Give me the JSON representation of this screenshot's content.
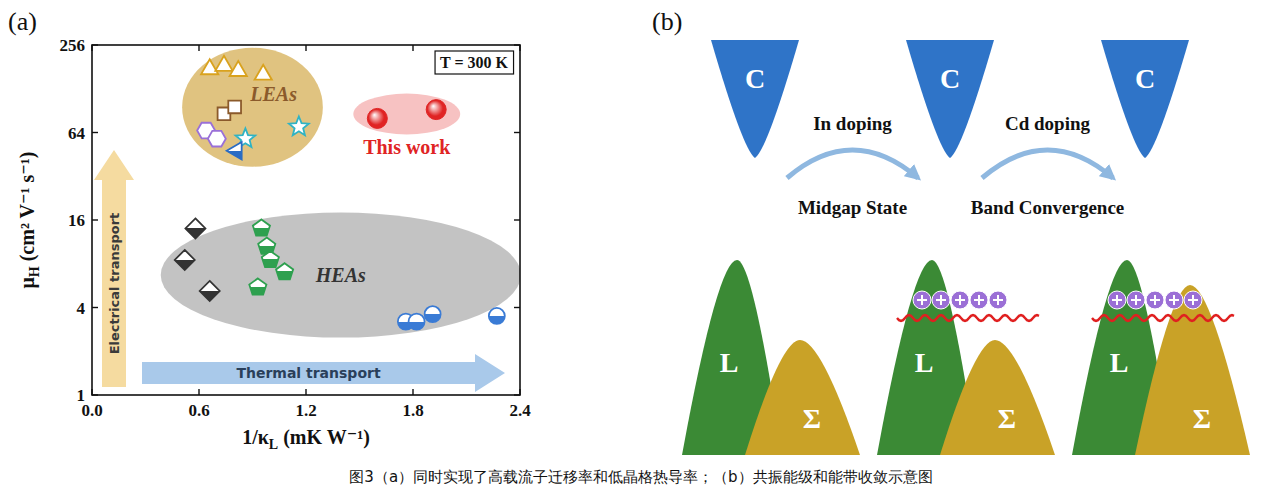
{
  "panel_labels": [
    "(a)",
    "(b)"
  ],
  "chart_data": {
    "type": "scatter",
    "x_label": "1/κL (mK W⁻¹)",
    "y_label": "μH (cm² V⁻¹ s⁻¹)",
    "log": "y",
    "xlim": [
      0,
      2.4
    ],
    "xticks": [
      {
        "value": 0,
        "label": "0.0"
      },
      0.6,
      1.2,
      1.8,
      2.4
    ],
    "ylim": [
      1,
      256
    ],
    "yticks": [
      1,
      4,
      16,
      64,
      256
    ],
    "note": "T = 300 K",
    "arrows": [
      {
        "label": "Electrical transport",
        "color": "#f5dba0"
      },
      {
        "label": "Thermal transport",
        "color": "#a9c9ea"
      }
    ],
    "groups": [
      {
        "label": "LEAs",
        "color": "#d8b460",
        "series": [
          {
            "color": "#8b5a2b",
            "marker": "square-open",
            "x": [
              0.74,
              0.8
            ],
            "values": [
              86,
              96
            ]
          },
          {
            "color": "#d9a21e",
            "marker": "triangle-open",
            "x": [
              0.66,
              0.74,
              0.82,
              0.96
            ],
            "values": [
              180,
              190,
              175,
              165
            ]
          },
          {
            "color": "#9a70d8",
            "marker": "hexagon-open",
            "x": [
              0.64,
              0.7
            ],
            "values": [
              66,
              58
            ]
          },
          {
            "color": "#2fb3c4",
            "marker": "star-open",
            "x": [
              0.86,
              1.16
            ],
            "values": [
              58,
              70
            ]
          },
          {
            "color": "#2a6cc4",
            "marker": "triangle-left-half",
            "x": [
              0.8
            ],
            "values": [
              48
            ]
          }
        ]
      },
      {
        "label": "This work",
        "color": "#f5b3b3",
        "series": [
          {
            "color": "#e02424",
            "marker": "circle-filled",
            "x": [
              1.6,
              1.93
            ],
            "values": [
              80,
              92
            ]
          }
        ]
      },
      {
        "label": "HEAs",
        "color": "#b4b4b4",
        "series": [
          {
            "color": "#333333",
            "marker": "diamond-half",
            "x": [
              0.58,
              0.52,
              0.66
            ],
            "values": [
              14,
              8.5,
              5.2
            ]
          },
          {
            "color": "#2ea04f",
            "marker": "pentagon-half",
            "x": [
              0.95,
              0.98,
              1.0,
              1.08,
              0.93
            ],
            "values": [
              14,
              10.5,
              8.5,
              7,
              5.5
            ]
          },
          {
            "color": "#3a7bd5",
            "marker": "circle-half",
            "x": [
              1.76,
              1.82,
              1.91,
              2.27
            ],
            "values": [
              3.2,
              3.2,
              3.6,
              3.5
            ]
          }
        ]
      }
    ]
  },
  "diagram": {
    "band_labels": {
      "conduction": "C",
      "l_band": "L",
      "sigma_band": "Σ"
    },
    "steps": [
      {
        "label": "In doping",
        "result": "Midgap State"
      },
      {
        "label": "Cd doping",
        "result": "Band Convergence"
      }
    ]
  },
  "caption": "图3（a）同时实现了高载流子迁移率和低晶格热导率；（b）共振能级和能带收敛示意图"
}
